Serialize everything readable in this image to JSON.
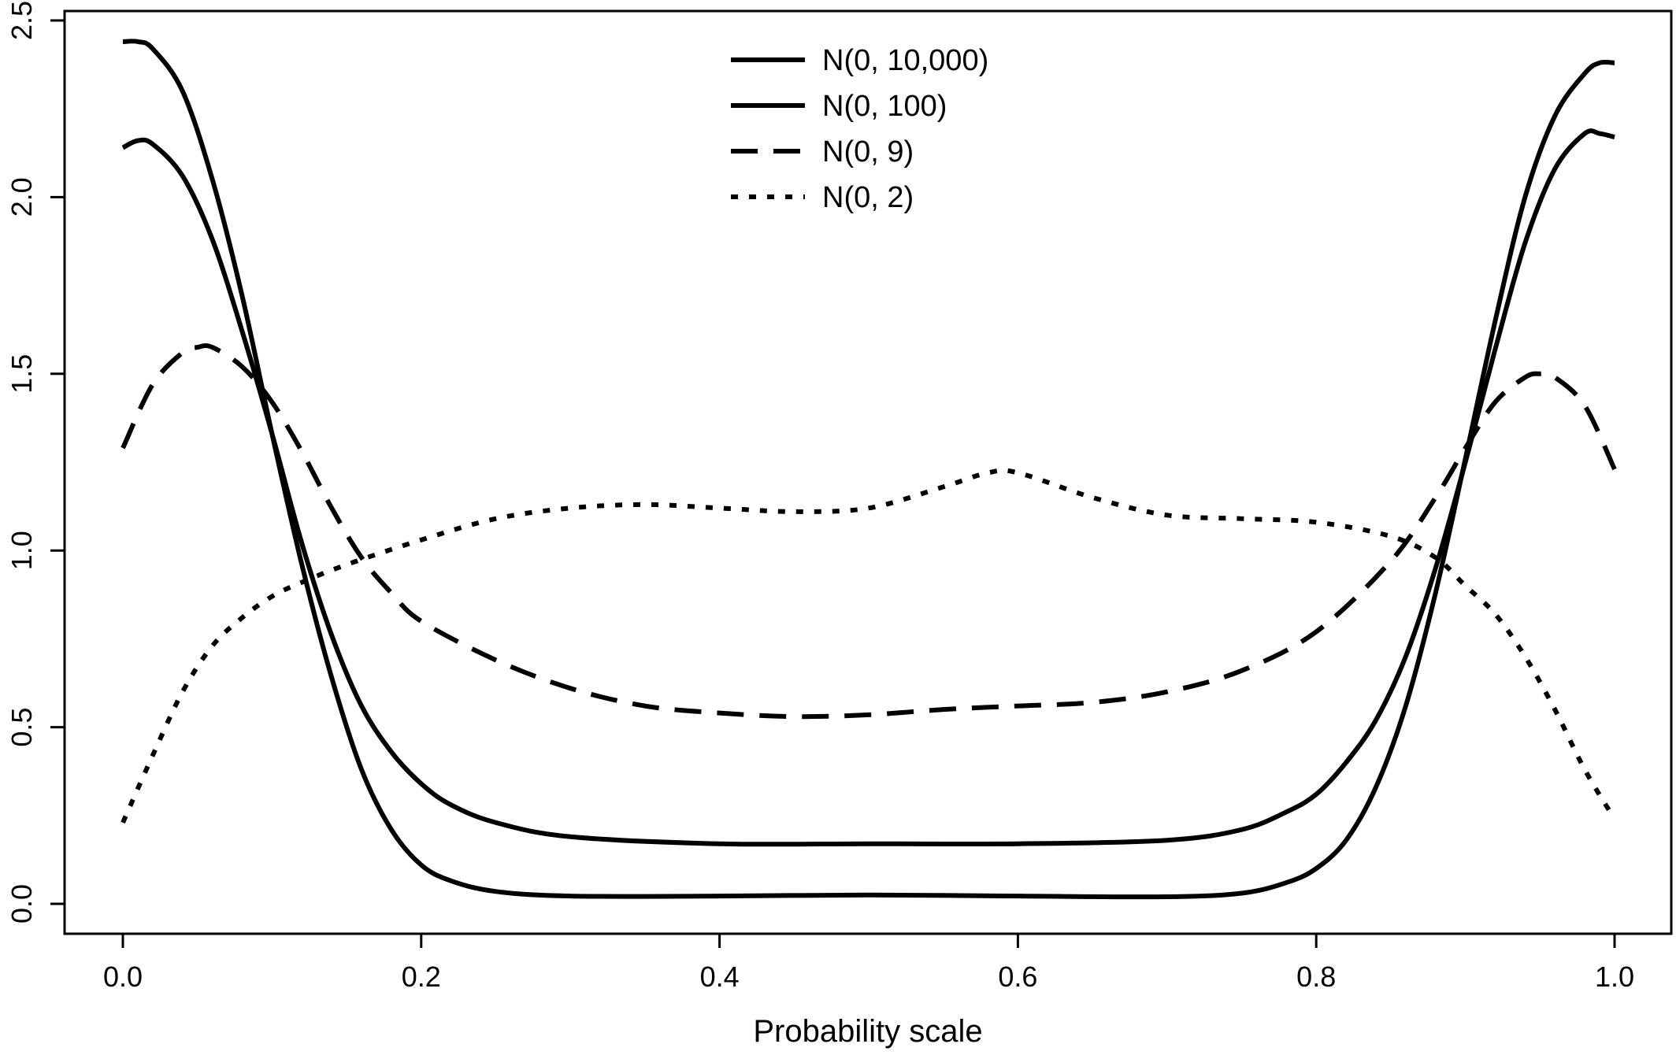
{
  "chart_data": {
    "type": "line",
    "title": "",
    "xlabel": "Probability scale",
    "ylabel": "",
    "xlim": [
      0.0,
      1.0
    ],
    "ylim": [
      0.0,
      2.5
    ],
    "x_ticks": [
      0.0,
      0.2,
      0.4,
      0.6,
      0.8,
      1.0
    ],
    "x_tick_labels": [
      "0.0",
      "0.2",
      "0.4",
      "0.6",
      "0.8",
      "1.0"
    ],
    "y_ticks": [
      0.0,
      0.5,
      1.0,
      1.5,
      2.0,
      2.5
    ],
    "y_tick_labels": [
      "0.0",
      "0.5",
      "1.0",
      "1.5",
      "2.0",
      "2.5"
    ],
    "grid": false,
    "legend_position": "top-center",
    "line_color": "#000000",
    "series": [
      {
        "name": "N(0, 10,000)",
        "style": "solid",
        "points": [
          [
            0.0,
            2.44
          ],
          [
            0.01,
            2.44
          ],
          [
            0.02,
            2.42
          ],
          [
            0.04,
            2.3
          ],
          [
            0.06,
            2.05
          ],
          [
            0.08,
            1.72
          ],
          [
            0.1,
            1.33
          ],
          [
            0.12,
            0.96
          ],
          [
            0.14,
            0.64
          ],
          [
            0.16,
            0.38
          ],
          [
            0.18,
            0.21
          ],
          [
            0.2,
            0.11
          ],
          [
            0.22,
            0.065
          ],
          [
            0.25,
            0.035
          ],
          [
            0.3,
            0.022
          ],
          [
            0.4,
            0.022
          ],
          [
            0.5,
            0.025
          ],
          [
            0.6,
            0.022
          ],
          [
            0.7,
            0.02
          ],
          [
            0.75,
            0.03
          ],
          [
            0.78,
            0.06
          ],
          [
            0.8,
            0.1
          ],
          [
            0.82,
            0.18
          ],
          [
            0.84,
            0.33
          ],
          [
            0.86,
            0.56
          ],
          [
            0.88,
            0.88
          ],
          [
            0.9,
            1.26
          ],
          [
            0.92,
            1.65
          ],
          [
            0.94,
            2.0
          ],
          [
            0.96,
            2.23
          ],
          [
            0.98,
            2.35
          ],
          [
            0.99,
            2.38
          ],
          [
            1.0,
            2.38
          ]
        ]
      },
      {
        "name": "N(0, 100)",
        "style": "solid",
        "points": [
          [
            0.0,
            2.14
          ],
          [
            0.01,
            2.16
          ],
          [
            0.02,
            2.15
          ],
          [
            0.04,
            2.06
          ],
          [
            0.06,
            1.88
          ],
          [
            0.08,
            1.62
          ],
          [
            0.1,
            1.33
          ],
          [
            0.12,
            1.02
          ],
          [
            0.14,
            0.76
          ],
          [
            0.16,
            0.56
          ],
          [
            0.18,
            0.43
          ],
          [
            0.2,
            0.34
          ],
          [
            0.22,
            0.28
          ],
          [
            0.25,
            0.23
          ],
          [
            0.3,
            0.19
          ],
          [
            0.4,
            0.17
          ],
          [
            0.5,
            0.17
          ],
          [
            0.6,
            0.17
          ],
          [
            0.7,
            0.18
          ],
          [
            0.75,
            0.21
          ],
          [
            0.78,
            0.26
          ],
          [
            0.8,
            0.31
          ],
          [
            0.82,
            0.4
          ],
          [
            0.84,
            0.52
          ],
          [
            0.86,
            0.7
          ],
          [
            0.88,
            0.95
          ],
          [
            0.9,
            1.25
          ],
          [
            0.92,
            1.57
          ],
          [
            0.94,
            1.87
          ],
          [
            0.96,
            2.08
          ],
          [
            0.98,
            2.18
          ],
          [
            0.99,
            2.18
          ],
          [
            1.0,
            2.17
          ]
        ]
      },
      {
        "name": "N(0, 9)",
        "style": "dashed",
        "points": [
          [
            0.0,
            1.29
          ],
          [
            0.02,
            1.47
          ],
          [
            0.04,
            1.56
          ],
          [
            0.05,
            1.575
          ],
          [
            0.06,
            1.575
          ],
          [
            0.08,
            1.52
          ],
          [
            0.1,
            1.42
          ],
          [
            0.12,
            1.28
          ],
          [
            0.14,
            1.12
          ],
          [
            0.16,
            0.98
          ],
          [
            0.18,
            0.88
          ],
          [
            0.2,
            0.8
          ],
          [
            0.25,
            0.69
          ],
          [
            0.3,
            0.61
          ],
          [
            0.35,
            0.56
          ],
          [
            0.4,
            0.54
          ],
          [
            0.45,
            0.53
          ],
          [
            0.5,
            0.535
          ],
          [
            0.55,
            0.55
          ],
          [
            0.6,
            0.56
          ],
          [
            0.65,
            0.57
          ],
          [
            0.7,
            0.6
          ],
          [
            0.75,
            0.66
          ],
          [
            0.8,
            0.77
          ],
          [
            0.85,
            0.97
          ],
          [
            0.88,
            1.15
          ],
          [
            0.9,
            1.29
          ],
          [
            0.92,
            1.42
          ],
          [
            0.94,
            1.49
          ],
          [
            0.95,
            1.5
          ],
          [
            0.96,
            1.49
          ],
          [
            0.98,
            1.41
          ],
          [
            1.0,
            1.23
          ]
        ]
      },
      {
        "name": "N(0, 2)",
        "style": "dotted",
        "points": [
          [
            0.0,
            0.23
          ],
          [
            0.02,
            0.42
          ],
          [
            0.04,
            0.6
          ],
          [
            0.06,
            0.73
          ],
          [
            0.08,
            0.81
          ],
          [
            0.1,
            0.87
          ],
          [
            0.12,
            0.91
          ],
          [
            0.15,
            0.96
          ],
          [
            0.2,
            1.03
          ],
          [
            0.25,
            1.09
          ],
          [
            0.3,
            1.12
          ],
          [
            0.35,
            1.13
          ],
          [
            0.4,
            1.12
          ],
          [
            0.45,
            1.11
          ],
          [
            0.5,
            1.12
          ],
          [
            0.55,
            1.18
          ],
          [
            0.58,
            1.22
          ],
          [
            0.6,
            1.22
          ],
          [
            0.65,
            1.15
          ],
          [
            0.7,
            1.1
          ],
          [
            0.75,
            1.09
          ],
          [
            0.8,
            1.08
          ],
          [
            0.85,
            1.04
          ],
          [
            0.88,
            0.98
          ],
          [
            0.9,
            0.9
          ],
          [
            0.92,
            0.82
          ],
          [
            0.94,
            0.7
          ],
          [
            0.96,
            0.55
          ],
          [
            0.98,
            0.38
          ],
          [
            1.0,
            0.24
          ]
        ]
      }
    ]
  }
}
